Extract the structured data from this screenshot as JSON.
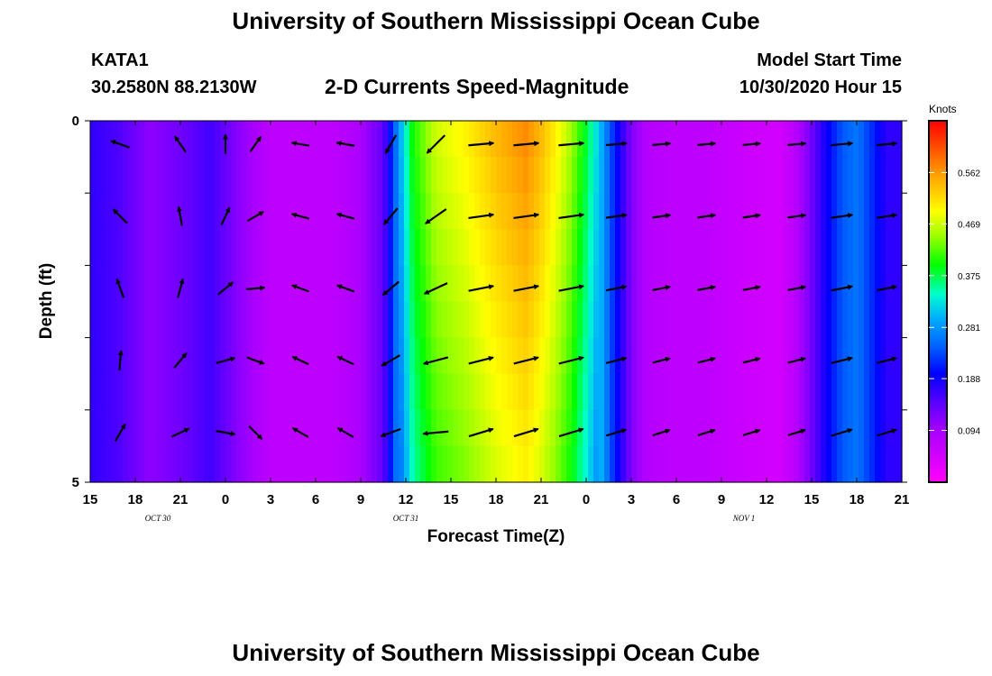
{
  "header": {
    "title": "University of Southern Mississippi Ocean Cube",
    "station_id": "KATA1",
    "station_coords": "30.2580N 88.2130W",
    "chart_title": "2-D Currents Speed-Magnitude",
    "model_label": "Model Start Time",
    "model_time": "10/30/2020 Hour 15"
  },
  "footer": {
    "title": "University of Southern Mississippi Ocean Cube"
  },
  "chart_data": {
    "type": "heatmap",
    "xlabel": "Forecast Time(Z)",
    "ylabel": "Depth (ft)",
    "xlim": [
      0,
      54
    ],
    "ylim": [
      0,
      5
    ],
    "y_inverted": true,
    "x_tick_labels": [
      "15",
      "18",
      "21",
      "0",
      "3",
      "6",
      "9",
      "12",
      "15",
      "18",
      "21",
      "0",
      "3",
      "6",
      "9",
      "12",
      "15",
      "18",
      "21"
    ],
    "y_tick_labels": [
      "0",
      "5"
    ],
    "date_labels": [
      {
        "text": "OCT  30",
        "x": 4.5
      },
      {
        "text": "OCT  31",
        "x": 21
      },
      {
        "text": "NOV  1",
        "x": 43.5
      }
    ],
    "colorbar": {
      "title": "Knots",
      "min": 0.0,
      "max": 0.656,
      "ticks": [
        0.094,
        0.188,
        0.281,
        0.375,
        0.469,
        0.562
      ],
      "tick_labels": [
        "0.094",
        "0.188",
        "0.281",
        "0.375",
        "0.469",
        "0.562"
      ]
    },
    "depth_bins": 10,
    "speed_profile": [
      [
        0,
        0.17
      ],
      [
        2,
        0.15
      ],
      [
        4,
        0.11
      ],
      [
        6,
        0.13
      ],
      [
        8,
        0.16
      ],
      [
        10,
        0.11
      ],
      [
        12,
        0.07
      ],
      [
        14,
        0.07
      ],
      [
        16,
        0.07
      ],
      [
        18,
        0.09
      ],
      [
        19.5,
        0.14
      ],
      [
        20.5,
        0.28
      ],
      [
        21.5,
        0.4
      ],
      [
        23,
        0.47
      ],
      [
        25,
        0.5
      ],
      [
        27,
        0.54
      ],
      [
        29,
        0.57
      ],
      [
        30,
        0.54
      ],
      [
        31,
        0.5
      ],
      [
        32,
        0.45
      ],
      [
        33,
        0.38
      ],
      [
        34,
        0.3
      ],
      [
        35,
        0.2
      ],
      [
        36,
        0.12
      ],
      [
        37,
        0.08
      ],
      [
        39,
        0.07
      ],
      [
        41,
        0.07
      ],
      [
        43,
        0.06
      ],
      [
        45,
        0.05
      ],
      [
        46,
        0.05
      ],
      [
        47,
        0.08
      ],
      [
        48,
        0.13
      ],
      [
        49,
        0.19
      ],
      [
        50,
        0.24
      ],
      [
        51,
        0.26
      ],
      [
        52,
        0.22
      ],
      [
        53,
        0.17
      ],
      [
        54,
        0.17
      ]
    ],
    "arrows_x_hours": [
      2,
      6,
      9,
      11,
      14,
      17,
      20,
      23,
      26,
      29,
      32,
      35,
      38,
      41,
      44,
      47,
      50,
      53
    ],
    "arrows_depths": [
      0,
      1,
      2,
      3,
      4
    ]
  }
}
